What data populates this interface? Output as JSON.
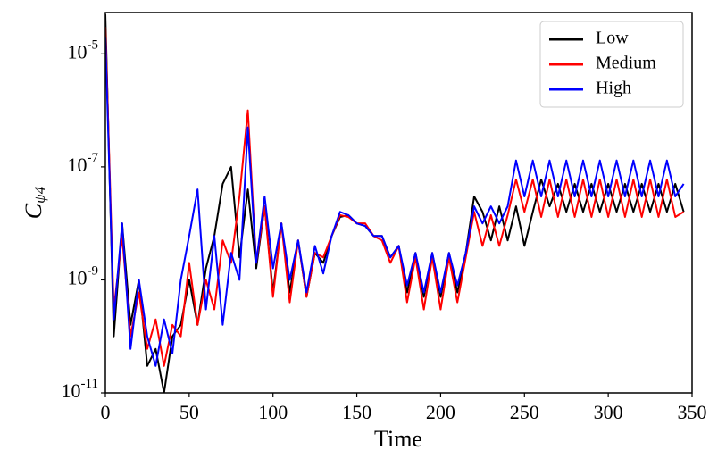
{
  "chart_data": {
    "type": "line",
    "x_label": "Time",
    "y_label": {
      "base": "C",
      "subscript": "ψ4"
    },
    "log_y": true,
    "legend": "upper right",
    "xlim": [
      0,
      350
    ],
    "xticks": [
      0,
      50,
      100,
      150,
      200,
      250,
      300,
      350
    ],
    "ylim": [
      1e-11,
      5.4e-05
    ],
    "yticks": [
      {
        "value": 1e-11,
        "label": "10",
        "exponent": "-11"
      },
      {
        "value": 1e-09,
        "label": "10",
        "exponent": "-9"
      },
      {
        "value": 1e-07,
        "label": "10",
        "exponent": "-7"
      },
      {
        "value": 1e-05,
        "label": "10",
        "exponent": "-5"
      }
    ],
    "x": [
      0,
      5,
      10,
      15,
      20,
      25,
      30,
      35,
      40,
      45,
      50,
      55,
      60,
      65,
      70,
      75,
      80,
      85,
      90,
      95,
      100,
      105,
      110,
      115,
      120,
      125,
      130,
      135,
      140,
      145,
      150,
      155,
      160,
      165,
      170,
      175,
      180,
      185,
      190,
      195,
      200,
      205,
      210,
      215,
      220,
      225,
      230,
      235,
      240,
      245,
      250,
      255,
      260,
      265,
      270,
      275,
      280,
      285,
      290,
      295,
      300,
      305,
      310,
      315,
      320,
      325,
      330,
      335,
      340,
      345
    ],
    "series": [
      {
        "name": "Low",
        "color": "#000000",
        "values": [
          5e-05,
          1e-10,
          1e-08,
          1.6e-10,
          1e-09,
          3e-11,
          6e-11,
          1e-11,
          1e-10,
          1.6e-10,
          1e-09,
          1.6e-10,
          1.6e-09,
          6e-09,
          5e-08,
          1e-07,
          2.5e-09,
          4e-08,
          1.6e-09,
          2e-08,
          6e-10,
          1e-08,
          6e-10,
          5e-09,
          5e-10,
          3e-09,
          2e-09,
          6e-09,
          1.3e-08,
          1.4e-08,
          1e-08,
          9e-09,
          6e-09,
          6e-09,
          2.5e-09,
          4e-09,
          6e-10,
          3e-09,
          5e-10,
          3e-09,
          5e-10,
          3e-09,
          6e-10,
          3e-09,
          3e-08,
          1.6e-08,
          5e-09,
          2e-08,
          5e-09,
          2e-08,
          4e-09,
          1.6e-08,
          6e-08,
          2e-08,
          5e-08,
          1.6e-08,
          5e-08,
          1.6e-08,
          5e-08,
          1.6e-08,
          5e-08,
          1.6e-08,
          5e-08,
          1.6e-08,
          5e-08,
          1.6e-08,
          5e-08,
          1.6e-08,
          5e-08,
          1.6e-08
        ]
      },
      {
        "name": "Medium",
        "color": "#ff0000",
        "values": [
          3e-05,
          3e-10,
          6e-09,
          1e-10,
          6e-10,
          6e-11,
          2e-10,
          3e-11,
          1.6e-10,
          1e-10,
          2e-09,
          1.6e-10,
          1e-09,
          3e-10,
          5e-09,
          2e-09,
          3e-08,
          1e-06,
          2e-09,
          2e-08,
          5e-10,
          1e-08,
          4e-10,
          5e-09,
          5e-10,
          3e-09,
          2.5e-09,
          6e-09,
          1.4e-08,
          1.3e-08,
          1e-08,
          1e-08,
          6e-09,
          5e-09,
          2e-09,
          4e-09,
          4e-10,
          2.5e-09,
          3e-10,
          2.5e-09,
          3e-10,
          2.5e-09,
          4e-10,
          2.5e-09,
          1.6e-08,
          4e-09,
          1.4e-08,
          4e-09,
          1.4e-08,
          6e-08,
          1.6e-08,
          6e-08,
          1.3e-08,
          6e-08,
          1.3e-08,
          6e-08,
          1.3e-08,
          6e-08,
          1.3e-08,
          6e-08,
          1.3e-08,
          6e-08,
          1.3e-08,
          6e-08,
          1.3e-08,
          6e-08,
          1.3e-08,
          6e-08,
          1.3e-08,
          1.6e-08
        ]
      },
      {
        "name": "High",
        "color": "#0000ff",
        "values": [
          2e-05,
          2e-10,
          1e-08,
          6e-11,
          1e-09,
          1e-10,
          3e-11,
          2e-10,
          5e-11,
          1e-09,
          6e-09,
          4e-08,
          3e-10,
          6e-09,
          1.6e-10,
          3e-09,
          1e-09,
          5e-07,
          2e-09,
          3e-08,
          1.6e-09,
          1e-08,
          1e-09,
          5e-09,
          6e-10,
          4e-09,
          1.3e-09,
          6e-09,
          1.6e-08,
          1.4e-08,
          1e-08,
          9e-09,
          6e-09,
          6e-09,
          2.5e-09,
          4e-09,
          8e-10,
          3e-09,
          6e-10,
          3e-09,
          6e-10,
          3e-09,
          8e-10,
          3e-09,
          2e-08,
          1e-08,
          2e-08,
          1e-08,
          2e-08,
          1.3e-07,
          3e-08,
          1.3e-07,
          3e-08,
          1.3e-07,
          3e-08,
          1.3e-07,
          3e-08,
          1.3e-07,
          3e-08,
          1.3e-07,
          3e-08,
          1.3e-07,
          3e-08,
          1.3e-07,
          3e-08,
          1.3e-07,
          3e-08,
          1.3e-07,
          3e-08,
          5e-08
        ]
      }
    ]
  }
}
